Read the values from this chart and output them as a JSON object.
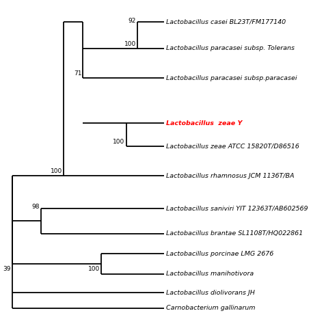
{
  "background_color": "#ffffff",
  "taxa": [
    "Lactobacillus casei BL23T/FM177140",
    "Lactobacillus paracasei subsp. Tolerans",
    "Lactobacillus paracasei subsp.paracasei",
    "Lactobacillus  zeae Y",
    "Lactobacillus zeae ATCC 15820T/D86516",
    "Lactobacillus rhamnosus JCM 1136T/BA",
    "Lactobacillus saniviri YIT 12363T/AB602569",
    "Lactobacillus brantae SL1108T/HQ022861",
    "Lactobacillus porcinae LMG 2676",
    "Lactobacillus manihotivora",
    "Lactobacillus diolivorans JH",
    "Carnobacterium gallinarum"
  ],
  "taxa_colors": [
    "black",
    "black",
    "black",
    "red",
    "black",
    "black",
    "black",
    "black",
    "black",
    "black",
    "black",
    "black"
  ],
  "taxa_italic": [
    true,
    true,
    true,
    true,
    true,
    true,
    true,
    true,
    true,
    true,
    true,
    true
  ],
  "taxa_bold": [
    false,
    false,
    false,
    true,
    false,
    false,
    false,
    false,
    false,
    false,
    false,
    false
  ],
  "tree_color": "black",
  "line_width": 1.3,
  "font_size": 6.8,
  "bootstrap_font_size": 6.5
}
